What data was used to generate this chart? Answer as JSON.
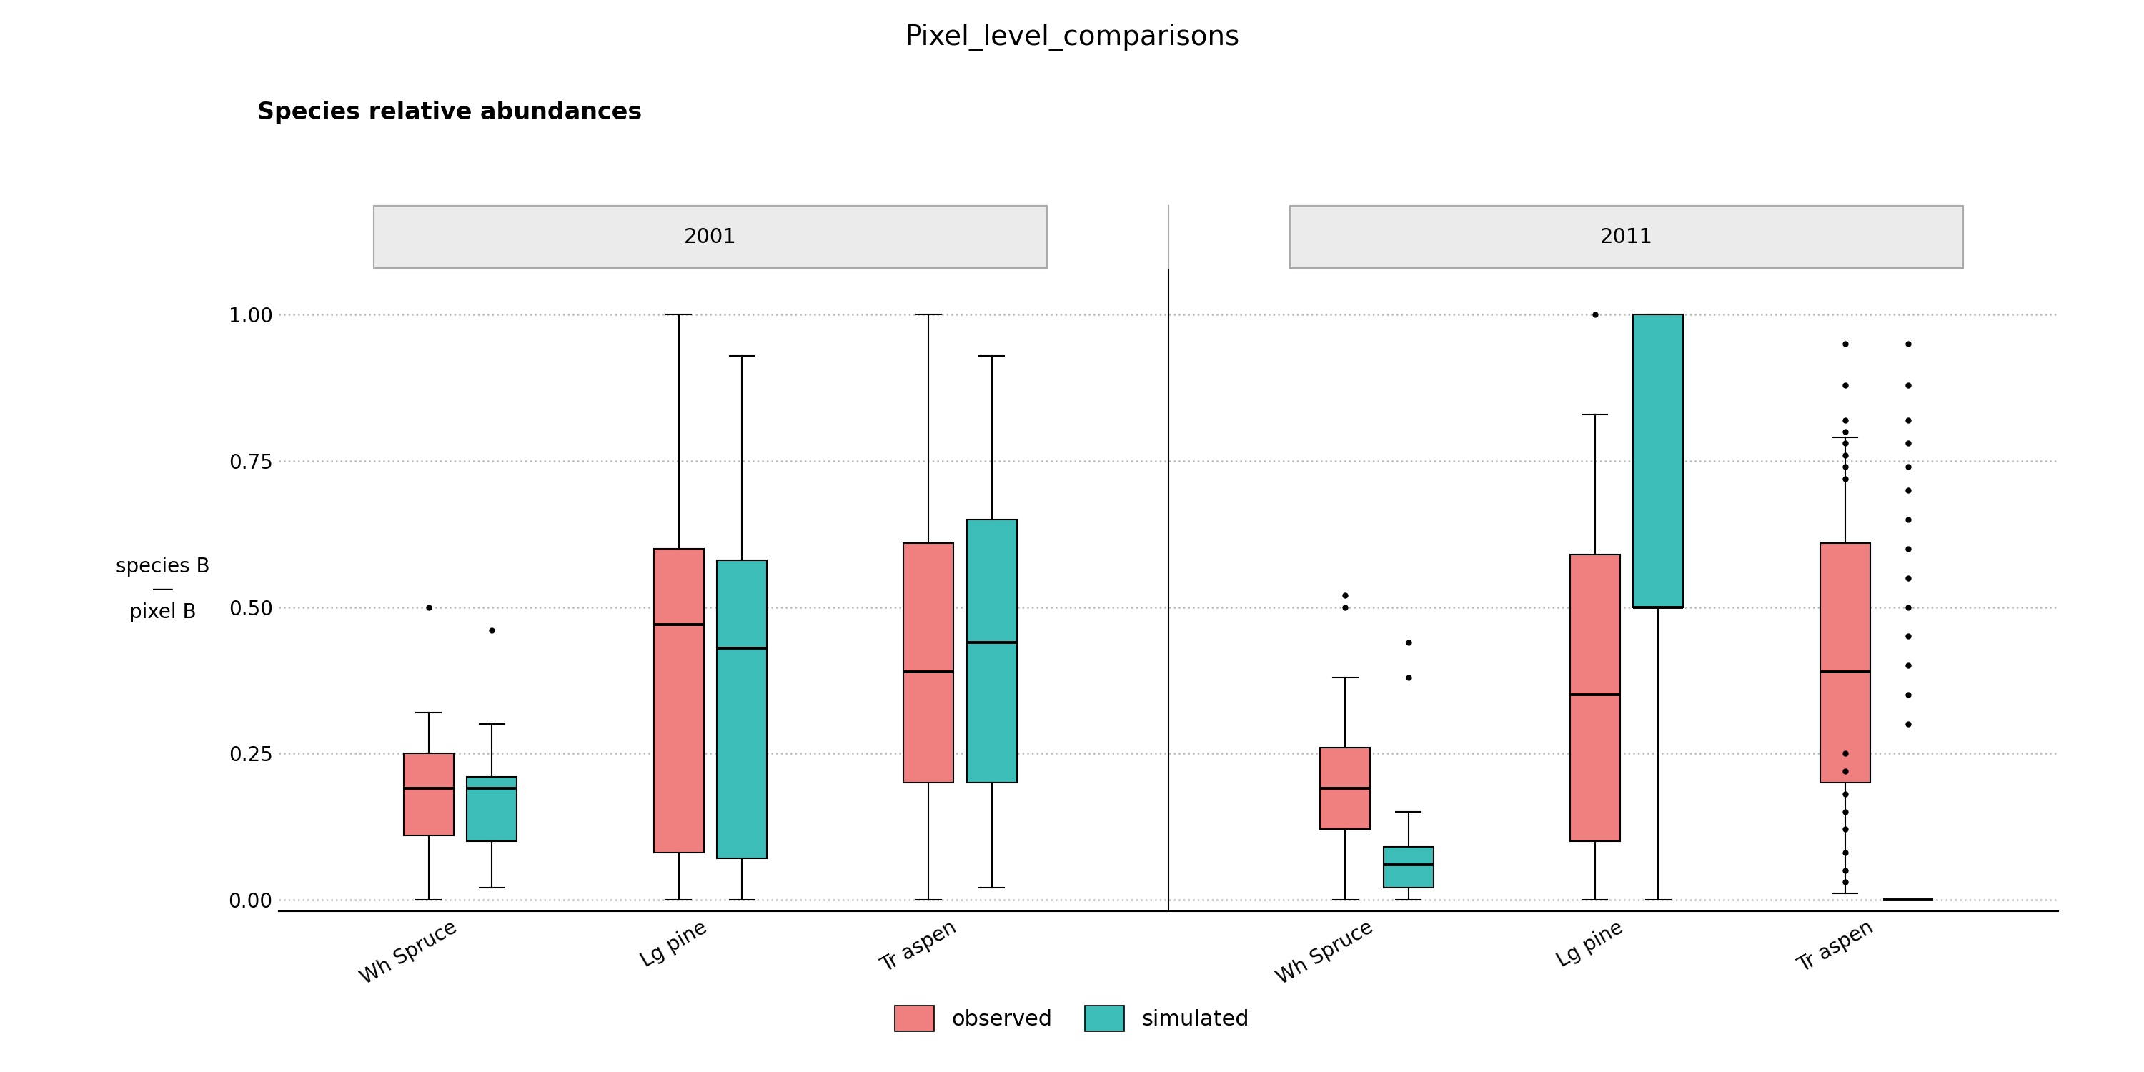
{
  "title": "Pixel_level_comparisons",
  "subtitle": "Species relative abundances",
  "observed_color": "#F08080",
  "simulated_color": "#3DBDB8",
  "background_color": "#FFFFFF",
  "facet_bg": "#EBEBEB",
  "facet_border": "#AAAAAA",
  "grid_color": "#BBBBBB",
  "ylim": [
    -0.02,
    1.08
  ],
  "yticks": [
    0.0,
    0.25,
    0.5,
    0.75,
    1.0
  ],
  "ytick_labels": [
    "0.00",
    "0.25",
    "0.50",
    "0.75",
    "1.00"
  ],
  "species": [
    "Wh Spruce",
    "Lg pine",
    "Tr aspen"
  ],
  "facets": [
    "2001",
    "2011"
  ],
  "boxes": {
    "2001_WS_obs": {
      "q1": 0.11,
      "med": 0.19,
      "q3": 0.25,
      "whislo": 0.0,
      "whishi": 0.32,
      "fliers": [
        0.5
      ]
    },
    "2001_WS_sim": {
      "q1": 0.1,
      "med": 0.19,
      "q3": 0.21,
      "whislo": 0.02,
      "whishi": 0.3,
      "fliers": [
        0.46
      ]
    },
    "2001_LP_obs": {
      "q1": 0.08,
      "med": 0.47,
      "q3": 0.6,
      "whislo": 0.0,
      "whishi": 1.0,
      "fliers": []
    },
    "2001_LP_sim": {
      "q1": 0.07,
      "med": 0.43,
      "q3": 0.58,
      "whislo": 0.0,
      "whishi": 0.93,
      "fliers": []
    },
    "2001_TA_obs": {
      "q1": 0.2,
      "med": 0.39,
      "q3": 0.61,
      "whislo": 0.0,
      "whishi": 1.0,
      "fliers": []
    },
    "2001_TA_sim": {
      "q1": 0.2,
      "med": 0.44,
      "q3": 0.65,
      "whislo": 0.02,
      "whishi": 0.93,
      "fliers": []
    },
    "2011_WS_obs": {
      "q1": 0.12,
      "med": 0.19,
      "q3": 0.26,
      "whislo": 0.0,
      "whishi": 0.38,
      "fliers": [
        0.52,
        0.5
      ]
    },
    "2011_WS_sim": {
      "q1": 0.02,
      "med": 0.06,
      "q3": 0.09,
      "whislo": 0.0,
      "whishi": 0.15,
      "fliers": [
        0.38,
        0.44
      ]
    },
    "2011_LP_obs": {
      "q1": 0.1,
      "med": 0.35,
      "q3": 0.59,
      "whislo": 0.0,
      "whishi": 0.83,
      "fliers": [
        1.0
      ]
    },
    "2011_LP_sim": {
      "q1": 0.5,
      "med": 0.5,
      "q3": 1.0,
      "whislo": 0.0,
      "whishi": 1.0,
      "fliers": []
    },
    "2011_TA_obs": {
      "q1": 0.2,
      "med": 0.39,
      "q3": 0.61,
      "whislo": 0.01,
      "whishi": 0.79,
      "fliers": [
        0.95,
        0.88,
        0.82,
        0.8,
        0.78,
        0.76,
        0.74,
        0.72,
        0.25,
        0.22,
        0.18,
        0.15,
        0.12,
        0.08,
        0.05,
        0.03
      ]
    },
    "2011_TA_sim": {
      "q1": 0.0,
      "med": 0.0,
      "q3": 0.0,
      "whislo": 0.0,
      "whishi": 0.0,
      "fliers": [
        0.95,
        0.88,
        0.82,
        0.78,
        0.74,
        0.7,
        0.65,
        0.6,
        0.55,
        0.5,
        0.45,
        0.4,
        0.35,
        0.3
      ]
    }
  }
}
